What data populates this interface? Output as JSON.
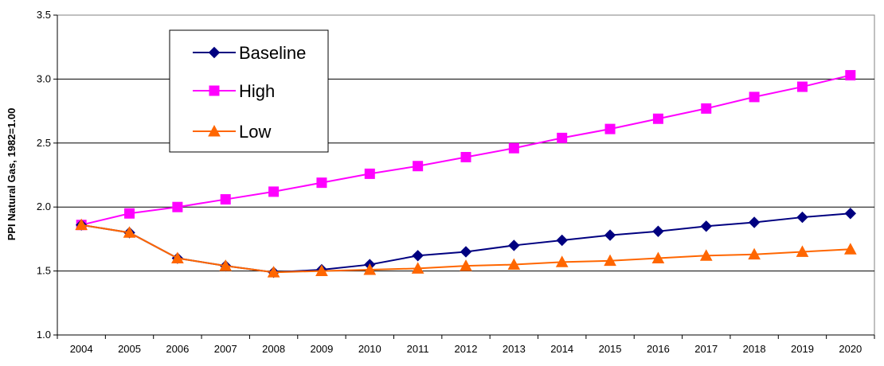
{
  "chart_data": {
    "type": "line",
    "title": "",
    "xlabel": "",
    "ylabel": "PPI Natural Gas, 1982=1.00",
    "x": [
      "2004",
      "2005",
      "2006",
      "2007",
      "2008",
      "2009",
      "2010",
      "2011",
      "2012",
      "2013",
      "2014",
      "2015",
      "2016",
      "2017",
      "2018",
      "2019",
      "2020"
    ],
    "ylim": [
      1.0,
      3.5
    ],
    "yticks": [
      "1.0",
      "1.5",
      "2.0",
      "2.5",
      "3.0",
      "3.5"
    ],
    "grid": "horizontal",
    "legend_position": "top-left",
    "series": [
      {
        "name": "Baseline",
        "color": "#000080",
        "marker": "diamond",
        "values": [
          1.86,
          1.8,
          1.6,
          1.54,
          1.49,
          1.51,
          1.55,
          1.62,
          1.65,
          1.7,
          1.74,
          1.78,
          1.81,
          1.85,
          1.88,
          1.92,
          1.95
        ]
      },
      {
        "name": "High",
        "color": "#FF00FF",
        "marker": "square",
        "values": [
          1.86,
          1.95,
          2.0,
          2.06,
          2.12,
          2.19,
          2.26,
          2.32,
          2.39,
          2.46,
          2.54,
          2.61,
          2.69,
          2.77,
          2.86,
          2.94,
          3.03
        ]
      },
      {
        "name": "Low",
        "color": "#FF6600",
        "marker": "triangle",
        "values": [
          1.86,
          1.8,
          1.6,
          1.54,
          1.49,
          1.5,
          1.51,
          1.52,
          1.54,
          1.55,
          1.57,
          1.58,
          1.6,
          1.62,
          1.63,
          1.65,
          1.67
        ]
      }
    ]
  }
}
